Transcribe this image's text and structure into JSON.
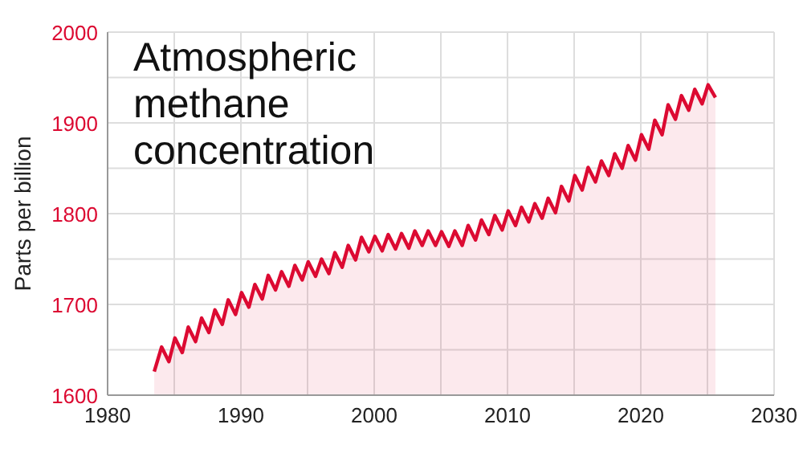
{
  "chart_data": {
    "type": "area",
    "title": "Atmospheric methane concentration",
    "ylabel": "Parts per billion",
    "xlim": [
      1980,
      2030
    ],
    "xticks": [
      1980,
      {
        "value": 1985,
        "label": null
      },
      1990,
      {
        "value": 1995,
        "label": null
      },
      2000,
      {
        "value": 2005,
        "label": null
      },
      2010,
      {
        "value": 2015,
        "label": null
      },
      2020,
      {
        "value": 2025,
        "label": null
      },
      2030
    ],
    "ylim": [
      1600,
      2000
    ],
    "yticks": [
      1600,
      {
        "value": 1650,
        "label": null
      },
      1700,
      {
        "value": 1750,
        "label": null
      },
      1800,
      {
        "value": 1850,
        "label": null
      },
      1900,
      {
        "value": 1950,
        "label": null
      },
      2000
    ],
    "grid": true,
    "series": [
      {
        "color": "#dc0a32",
        "x": [
          1983.5,
          1984.05,
          1984.6,
          1985.05,
          1985.6,
          1986.05,
          1986.6,
          1987.05,
          1987.6,
          1988.05,
          1988.6,
          1989.05,
          1989.6,
          1990.05,
          1990.6,
          1991.05,
          1991.6,
          1992.05,
          1992.6,
          1993.05,
          1993.6,
          1994.05,
          1994.6,
          1995.05,
          1995.6,
          1996.05,
          1996.6,
          1997.05,
          1997.6,
          1998.05,
          1998.6,
          1999.05,
          1999.6,
          2000.05,
          2000.6,
          2001.05,
          2001.6,
          2002.05,
          2002.6,
          2003.05,
          2003.6,
          2004.05,
          2004.6,
          2005.05,
          2005.6,
          2006.05,
          2006.6,
          2007.05,
          2007.6,
          2008.05,
          2008.6,
          2009.05,
          2009.6,
          2010.05,
          2010.6,
          2011.05,
          2011.6,
          2012.05,
          2012.6,
          2013.05,
          2013.6,
          2014.05,
          2014.6,
          2015.05,
          2015.6,
          2016.05,
          2016.6,
          2017.05,
          2017.6,
          2018.05,
          2018.6,
          2019.05,
          2019.6,
          2020.05,
          2020.6,
          2021.05,
          2021.6,
          2022.05,
          2022.6,
          2023.05,
          2023.6,
          2024.05,
          2024.6,
          2025.05,
          2025.6
        ],
        "values": [
          1626,
          1653,
          1637,
          1663,
          1647,
          1675,
          1659,
          1685,
          1669,
          1694,
          1678,
          1705,
          1689,
          1713,
          1697,
          1722,
          1706,
          1732,
          1716,
          1736,
          1720,
          1743,
          1727,
          1747,
          1731,
          1750,
          1734,
          1757,
          1741,
          1765,
          1749,
          1774,
          1758,
          1775,
          1759,
          1777,
          1761,
          1778,
          1762,
          1781,
          1765,
          1781,
          1765,
          1780,
          1764,
          1781,
          1765,
          1787,
          1771,
          1793,
          1777,
          1798,
          1782,
          1803,
          1787,
          1807,
          1791,
          1811,
          1795,
          1817,
          1801,
          1830,
          1814,
          1842,
          1826,
          1851,
          1835,
          1858,
          1842,
          1866,
          1850,
          1875,
          1859,
          1887,
          1871,
          1903,
          1887,
          1920,
          1904,
          1930,
          1914,
          1937,
          1921,
          1942,
          1928
        ]
      }
    ]
  }
}
